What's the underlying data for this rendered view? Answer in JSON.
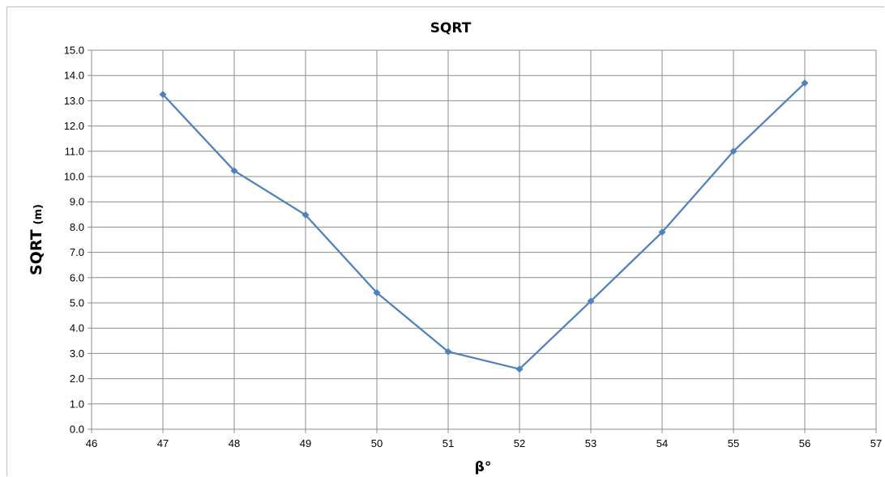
{
  "chart_data": {
    "type": "line",
    "title": "SQRT",
    "xlabel": "β°",
    "ylabel_main": "SQRT",
    "ylabel_unit": "(m)",
    "xlim": [
      46,
      57
    ],
    "ylim": [
      0,
      15
    ],
    "x_ticks": [
      46,
      47,
      48,
      49,
      50,
      51,
      52,
      53,
      54,
      55,
      56,
      57
    ],
    "y_ticks": [
      "0.0",
      "1.0",
      "2.0",
      "3.0",
      "4.0",
      "5.0",
      "6.0",
      "7.0",
      "8.0",
      "9.0",
      "10.0",
      "11.0",
      "12.0",
      "13.0",
      "14.0",
      "15.0"
    ],
    "grid": true,
    "legend": "none",
    "series": [
      {
        "color": "#4f81bd",
        "marker": "diamond",
        "x": [
          47,
          48,
          49,
          50,
          51,
          52,
          53,
          54,
          55,
          56
        ],
        "y": [
          13.25,
          10.23,
          8.48,
          5.4,
          3.07,
          2.38,
          5.07,
          7.8,
          11.0,
          13.7
        ]
      }
    ]
  }
}
